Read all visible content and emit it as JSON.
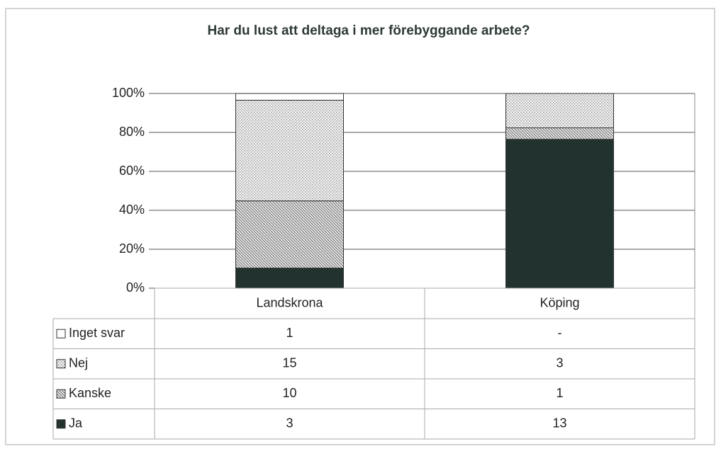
{
  "chart_data": {
    "type": "bar",
    "stacked": "percent",
    "title": "Har du lust att deltaga i mer förebyggande arbete?",
    "categories": [
      "Landskrona",
      "Köping"
    ],
    "series": [
      {
        "name": "Inget svar",
        "color": "#ffffff",
        "pattern": "solid",
        "values": [
          1,
          null
        ],
        "value_labels": [
          "1",
          "-"
        ]
      },
      {
        "name": "Nej",
        "color": "#9a9a9a",
        "pattern": "dots",
        "values": [
          15,
          3
        ]
      },
      {
        "name": "Kanske",
        "color": "#7a7a7a",
        "pattern": "hatch",
        "values": [
          10,
          1
        ]
      },
      {
        "name": "Ja",
        "color": "#22332f",
        "pattern": "solid",
        "values": [
          3,
          13
        ]
      }
    ],
    "ylim": [
      0,
      100
    ],
    "yticks": [
      {
        "value": 0,
        "label": "0%"
      },
      {
        "value": 20,
        "label": "20%"
      },
      {
        "value": 40,
        "label": "40%"
      },
      {
        "value": 60,
        "label": "60%"
      },
      {
        "value": 80,
        "label": "80%"
      },
      {
        "value": 100,
        "label": "100%"
      }
    ],
    "grid": true,
    "legend": "table"
  }
}
